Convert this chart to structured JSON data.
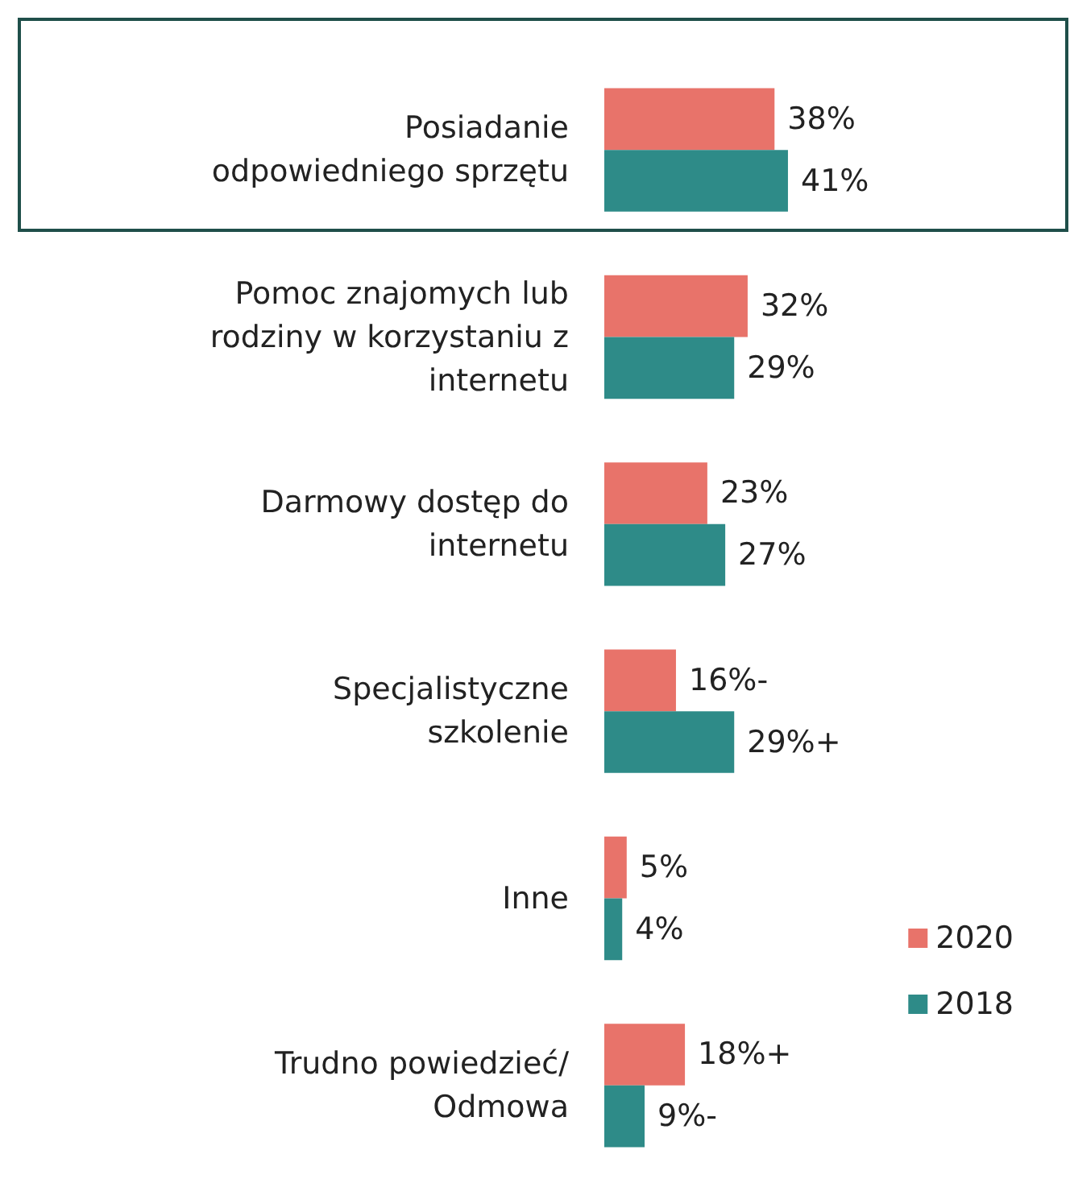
{
  "chart_data": {
    "type": "bar",
    "orientation": "horizontal",
    "categories": [
      "Posiadanie\nodpowiedniego sprzętu",
      "Pomoc znajomych lub\nrodziny w korzystaniu z\ninternetu",
      "Darmowy dostęp do\ninternetu",
      "Specjalistyczne\nszkolenie",
      "Inne",
      "Trudno powiedzieć/\nOdmowa"
    ],
    "series": [
      {
        "name": "2020",
        "color": "#e8736a",
        "values": [
          38,
          32,
          23,
          16,
          5,
          18
        ],
        "value_labels": [
          "38%",
          "32%",
          "23%",
          "16%-",
          "5%",
          "18%+"
        ]
      },
      {
        "name": "2018",
        "color": "#2e8b88",
        "values": [
          41,
          29,
          27,
          29,
          4,
          9
        ],
        "value_labels": [
          "41%",
          "29%",
          "27%",
          "29%+",
          "4%",
          "9%-"
        ]
      }
    ],
    "legend": "right",
    "grid": false
  }
}
